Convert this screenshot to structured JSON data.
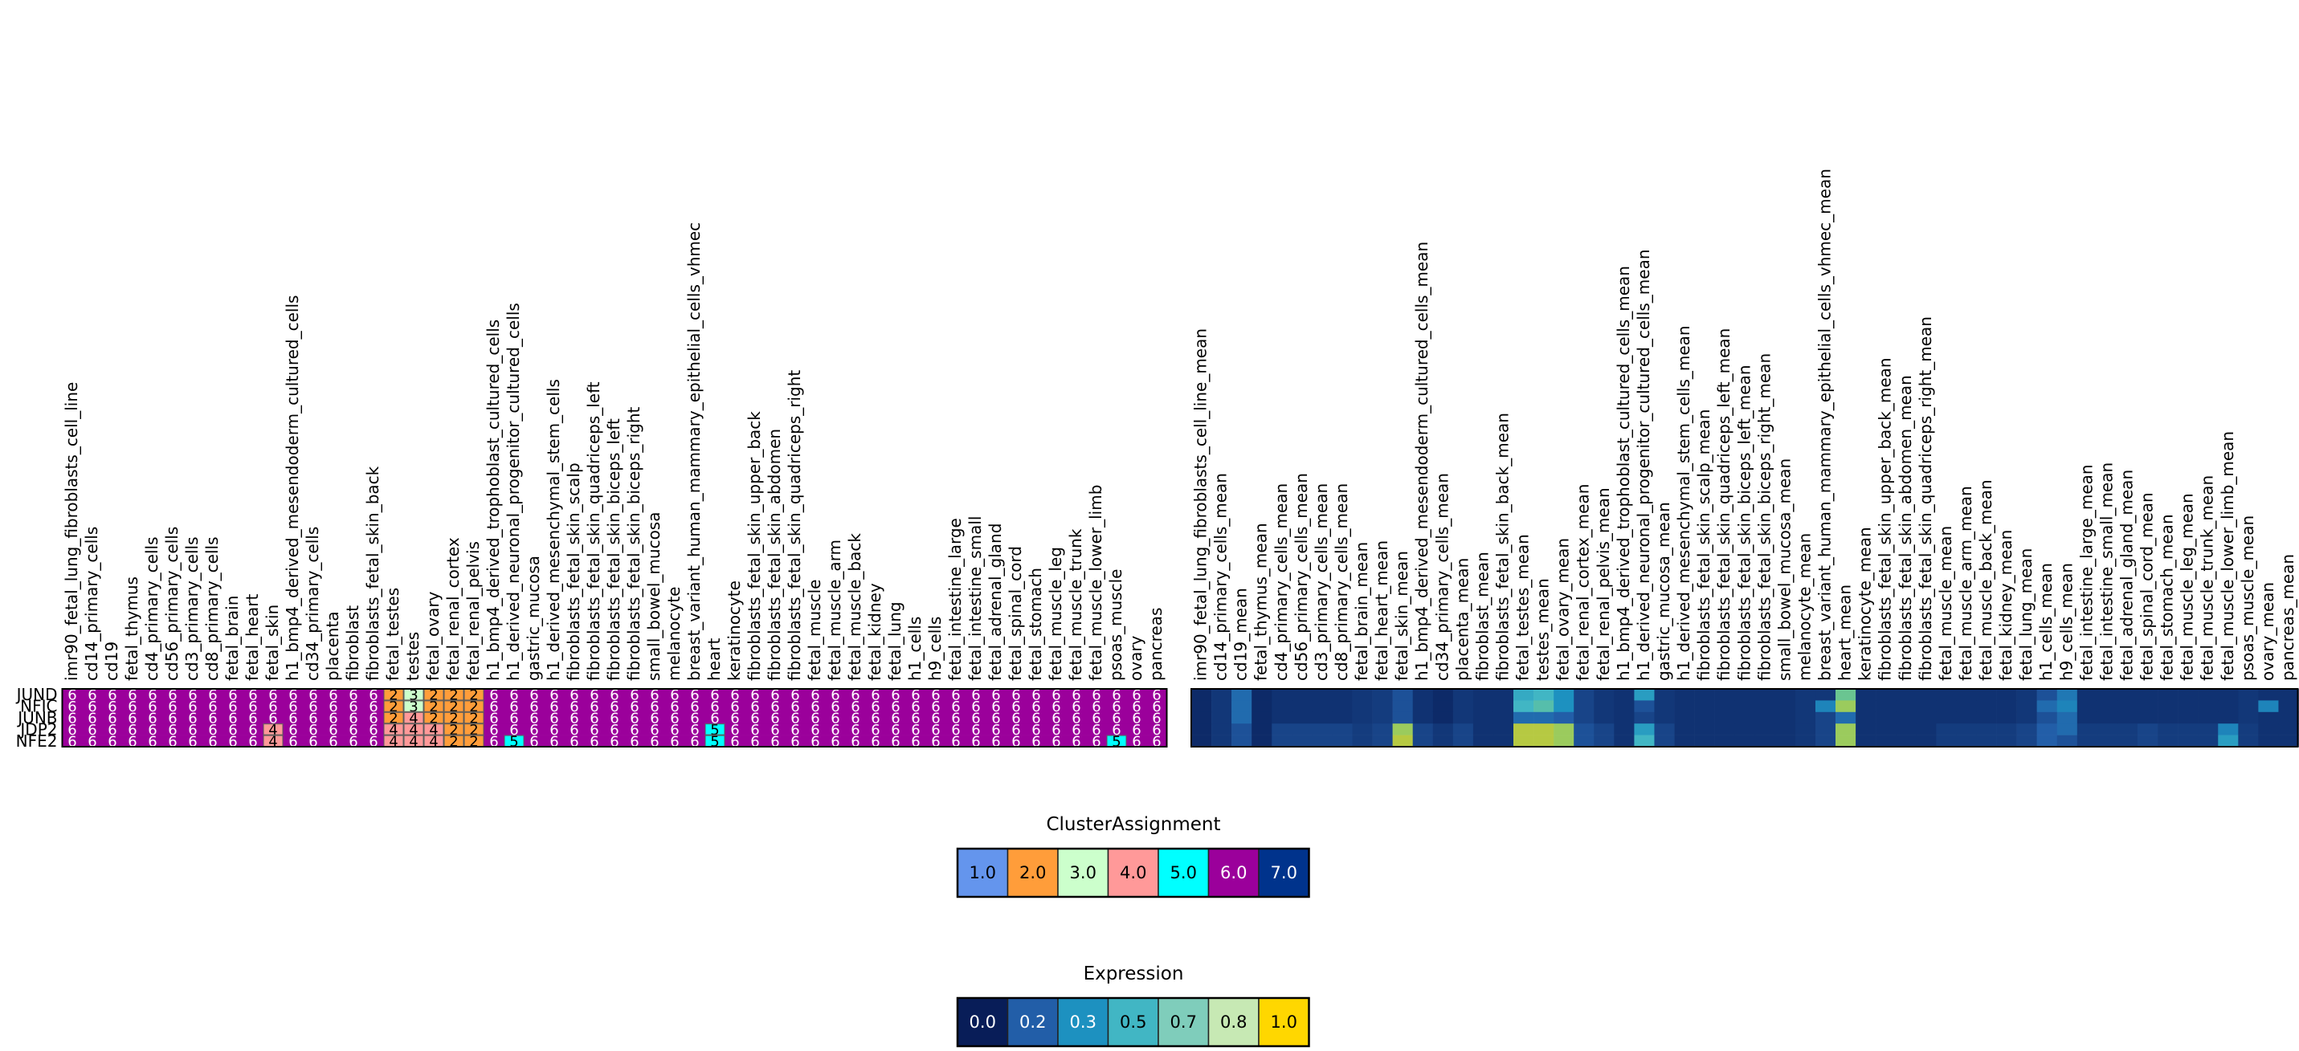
{
  "chart_data": [
    {
      "type": "heatmap",
      "title": "",
      "rows": [
        "JUND",
        "NFIC",
        "JUNB",
        "JDP2",
        "NFE2"
      ],
      "columns": [
        "imr90_fetal_lung_fibroblasts_cell_line",
        "cd14_primary_cells",
        "cd19",
        "fetal_thymus",
        "cd4_primary_cells",
        "cd56_primary_cells",
        "cd3_primary_cells",
        "cd8_primary_cells",
        "fetal_brain",
        "fetal_heart",
        "fetal_skin",
        "h1_bmp4_derived_mesendoderm_cultured_cells",
        "cd34_primary_cells",
        "placenta",
        "fibroblast",
        "fibroblasts_fetal_skin_back",
        "fetal_testes",
        "testes",
        "fetal_ovary",
        "fetal_renal_cortex",
        "fetal_renal_pelvis",
        "h1_bmp4_derived_trophoblast_cultured_cells",
        "h1_derived_neuronal_progenitor_cultured_cells",
        "gastric_mucosa",
        "h1_derived_mesenchymal_stem_cells",
        "fibroblasts_fetal_skin_scalp",
        "fibroblasts_fetal_skin_quadriceps_left",
        "fibroblasts_fetal_skin_biceps_left",
        "fibroblasts_fetal_skin_biceps_right",
        "small_bowel_mucosa",
        "melanocyte",
        "breast_variant_human_mammary_epithelial_cells_vhmec",
        "heart",
        "keratinocyte",
        "fibroblasts_fetal_skin_upper_back",
        "fibroblasts_fetal_skin_abdomen",
        "fibroblasts_fetal_skin_quadriceps_right",
        "fetal_muscle",
        "fetal_muscle_arm",
        "fetal_muscle_back",
        "fetal_kidney",
        "fetal_lung",
        "h1_cells",
        "h9_cells",
        "fetal_intestine_large",
        "fetal_intestine_small",
        "fetal_adrenal_gland",
        "fetal_spinal_cord",
        "fetal_stomach",
        "fetal_muscle_leg",
        "fetal_muscle_trunk",
        "fetal_muscle_lower_limb",
        "psoas_muscle",
        "ovary",
        "pancreas"
      ],
      "values": [
        [
          6,
          6,
          6,
          6,
          6,
          6,
          6,
          6,
          6,
          6,
          6,
          6,
          6,
          6,
          6,
          6,
          2,
          3,
          2,
          2,
          2,
          6,
          6,
          6,
          6,
          6,
          6,
          6,
          6,
          6,
          6,
          6,
          6,
          6,
          6,
          6,
          6,
          6,
          6,
          6,
          6,
          6,
          6,
          6,
          6,
          6,
          6,
          6,
          6,
          6,
          6,
          6,
          6,
          6,
          6
        ],
        [
          6,
          6,
          6,
          6,
          6,
          6,
          6,
          6,
          6,
          6,
          6,
          6,
          6,
          6,
          6,
          6,
          2,
          3,
          2,
          2,
          2,
          6,
          6,
          6,
          6,
          6,
          6,
          6,
          6,
          6,
          6,
          6,
          6,
          6,
          6,
          6,
          6,
          6,
          6,
          6,
          6,
          6,
          6,
          6,
          6,
          6,
          6,
          6,
          6,
          6,
          6,
          6,
          6,
          6,
          6
        ],
        [
          6,
          6,
          6,
          6,
          6,
          6,
          6,
          6,
          6,
          6,
          6,
          6,
          6,
          6,
          6,
          6,
          2,
          4,
          2,
          2,
          2,
          6,
          6,
          6,
          6,
          6,
          6,
          6,
          6,
          6,
          6,
          6,
          6,
          6,
          6,
          6,
          6,
          6,
          6,
          6,
          6,
          6,
          6,
          6,
          6,
          6,
          6,
          6,
          6,
          6,
          6,
          6,
          6,
          6,
          6
        ],
        [
          6,
          6,
          6,
          6,
          6,
          6,
          6,
          6,
          6,
          6,
          4,
          6,
          6,
          6,
          6,
          6,
          4,
          4,
          4,
          2,
          2,
          6,
          6,
          6,
          6,
          6,
          6,
          6,
          6,
          6,
          6,
          6,
          5,
          6,
          6,
          6,
          6,
          6,
          6,
          6,
          6,
          6,
          6,
          6,
          6,
          6,
          6,
          6,
          6,
          6,
          6,
          6,
          6,
          6,
          6
        ],
        [
          6,
          6,
          6,
          6,
          6,
          6,
          6,
          6,
          6,
          6,
          4,
          6,
          6,
          6,
          6,
          6,
          4,
          4,
          4,
          2,
          2,
          6,
          5,
          6,
          6,
          6,
          6,
          6,
          6,
          6,
          6,
          6,
          5,
          6,
          6,
          6,
          6,
          6,
          6,
          6,
          6,
          6,
          6,
          6,
          6,
          6,
          6,
          6,
          6,
          6,
          6,
          6,
          5,
          6,
          6
        ]
      ],
      "legend": {
        "title": "ClusterAssignment",
        "placement": "bottom-center",
        "labels": [
          "1.0",
          "2.0",
          "3.0",
          "4.0",
          "5.0",
          "6.0",
          "7.0"
        ],
        "colors": [
          "#6495ed",
          "#ff9d3a",
          "#ccffcc",
          "#ff9999",
          "#00ffff",
          "#9b009b",
          "#00338c"
        ]
      }
    },
    {
      "type": "heatmap",
      "title": "",
      "rows": [
        "JUND",
        "NFIC",
        "JUNB",
        "JDP2",
        "NFE2"
      ],
      "columns": [
        "imr90_fetal_lung_fibroblasts_cell_line_mean",
        "cd14_primary_cells_mean",
        "cd19_mean",
        "fetal_thymus_mean",
        "cd4_primary_cells_mean",
        "cd56_primary_cells_mean",
        "cd3_primary_cells_mean",
        "cd8_primary_cells_mean",
        "fetal_brain_mean",
        "fetal_heart_mean",
        "fetal_skin_mean",
        "h1_bmp4_derived_mesendoderm_cultured_cells_mean",
        "cd34_primary_cells_mean",
        "placenta_mean",
        "fibroblast_mean",
        "fibroblasts_fetal_skin_back_mean",
        "fetal_testes_mean",
        "testes_mean",
        "fetal_ovary_mean",
        "fetal_renal_cortex_mean",
        "fetal_renal_pelvis_mean",
        "h1_bmp4_derived_trophoblast_cultured_cells_mean",
        "h1_derived_neuronal_progenitor_cultured_cells_mean",
        "gastric_mucosa_mean",
        "h1_derived_mesenchymal_stem_cells_mean",
        "fibroblasts_fetal_skin_scalp_mean",
        "fibroblasts_fetal_skin_quadriceps_left_mean",
        "fibroblasts_fetal_skin_biceps_left_mean",
        "fibroblasts_fetal_skin_biceps_right_mean",
        "small_bowel_mucosa_mean",
        "melanocyte_mean",
        "breast_variant_human_mammary_epithelial_cells_vhmec_mean",
        "heart_mean",
        "keratinocyte_mean",
        "fibroblasts_fetal_skin_upper_back_mean",
        "fibroblasts_fetal_skin_abdomen_mean",
        "fibroblasts_fetal_skin_quadriceps_right_mean",
        "fetal_muscle_mean",
        "fetal_muscle_arm_mean",
        "fetal_muscle_back_mean",
        "fetal_kidney_mean",
        "fetal_lung_mean",
        "h1_cells_mean",
        "h9_cells_mean",
        "fetal_intestine_large_mean",
        "fetal_intestine_small_mean",
        "fetal_adrenal_gland_mean",
        "fetal_spinal_cord_mean",
        "fetal_stomach_mean",
        "fetal_muscle_leg_mean",
        "fetal_muscle_trunk_mean",
        "fetal_muscle_lower_limb_mean",
        "psoas_muscle_mean",
        "ovary_mean",
        "pancreas_mean"
      ],
      "values": [
        [
          0.05,
          0.1,
          0.3,
          0.05,
          0.08,
          0.08,
          0.08,
          0.08,
          0.1,
          0.12,
          0.2,
          0.08,
          0.05,
          0.1,
          0.08,
          0.08,
          0.55,
          0.6,
          0.45,
          0.15,
          0.1,
          0.08,
          0.5,
          0.1,
          0.08,
          0.08,
          0.08,
          0.08,
          0.08,
          0.08,
          0.1,
          0.1,
          0.7,
          0.08,
          0.08,
          0.08,
          0.08,
          0.08,
          0.08,
          0.08,
          0.08,
          0.1,
          0.2,
          0.35,
          0.08,
          0.08,
          0.08,
          0.08,
          0.08,
          0.08,
          0.08,
          0.08,
          0.1,
          0.08,
          0.08
        ],
        [
          0.05,
          0.1,
          0.3,
          0.05,
          0.08,
          0.08,
          0.08,
          0.08,
          0.1,
          0.12,
          0.2,
          0.08,
          0.05,
          0.1,
          0.08,
          0.08,
          0.6,
          0.65,
          0.45,
          0.15,
          0.1,
          0.08,
          0.2,
          0.1,
          0.08,
          0.08,
          0.08,
          0.08,
          0.08,
          0.08,
          0.1,
          0.4,
          0.8,
          0.08,
          0.08,
          0.08,
          0.08,
          0.08,
          0.08,
          0.08,
          0.08,
          0.1,
          0.3,
          0.4,
          0.08,
          0.08,
          0.08,
          0.08,
          0.08,
          0.08,
          0.08,
          0.08,
          0.1,
          0.4,
          0.08
        ],
        [
          0.05,
          0.1,
          0.3,
          0.05,
          0.08,
          0.08,
          0.08,
          0.08,
          0.1,
          0.12,
          0.2,
          0.08,
          0.05,
          0.1,
          0.08,
          0.08,
          0.3,
          0.3,
          0.25,
          0.15,
          0.1,
          0.08,
          0.15,
          0.1,
          0.08,
          0.08,
          0.08,
          0.08,
          0.08,
          0.08,
          0.1,
          0.15,
          0.3,
          0.08,
          0.08,
          0.08,
          0.08,
          0.08,
          0.08,
          0.08,
          0.08,
          0.1,
          0.2,
          0.3,
          0.08,
          0.08,
          0.08,
          0.08,
          0.08,
          0.08,
          0.08,
          0.08,
          0.1,
          0.08,
          0.08
        ],
        [
          0.05,
          0.1,
          0.2,
          0.05,
          0.15,
          0.15,
          0.15,
          0.15,
          0.12,
          0.15,
          0.8,
          0.15,
          0.1,
          0.15,
          0.08,
          0.08,
          0.85,
          0.85,
          0.8,
          0.2,
          0.15,
          0.08,
          0.5,
          0.15,
          0.08,
          0.08,
          0.08,
          0.08,
          0.08,
          0.08,
          0.1,
          0.15,
          0.8,
          0.08,
          0.08,
          0.08,
          0.08,
          0.12,
          0.12,
          0.12,
          0.12,
          0.15,
          0.25,
          0.3,
          0.12,
          0.12,
          0.12,
          0.15,
          0.12,
          0.12,
          0.12,
          0.4,
          0.12,
          0.08,
          0.08
        ],
        [
          0.05,
          0.1,
          0.2,
          0.05,
          0.15,
          0.15,
          0.15,
          0.15,
          0.12,
          0.15,
          0.85,
          0.15,
          0.1,
          0.15,
          0.08,
          0.08,
          0.85,
          0.85,
          0.8,
          0.2,
          0.15,
          0.08,
          0.6,
          0.15,
          0.08,
          0.08,
          0.08,
          0.08,
          0.08,
          0.08,
          0.1,
          0.15,
          0.8,
          0.08,
          0.08,
          0.08,
          0.08,
          0.12,
          0.12,
          0.12,
          0.12,
          0.15,
          0.25,
          0.2,
          0.12,
          0.12,
          0.12,
          0.15,
          0.12,
          0.12,
          0.12,
          0.5,
          0.12,
          0.08,
          0.08
        ]
      ],
      "legend": {
        "title": "Expression",
        "placement": "bottom-center",
        "labels": [
          "0.0",
          "0.2",
          "0.3",
          "0.5",
          "0.7",
          "0.8",
          "1.0"
        ],
        "colors": [
          "#081d58",
          "#225ea8",
          "#1d91c0",
          "#41b6c4",
          "#7fcdbb",
          "#c7e9b4",
          "#ffd700"
        ]
      }
    }
  ]
}
